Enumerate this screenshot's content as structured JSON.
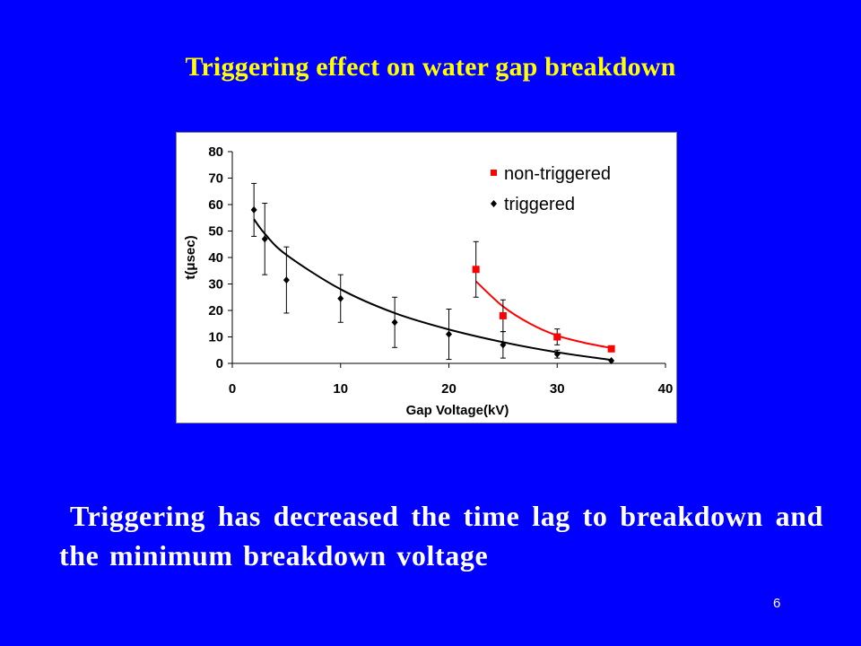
{
  "slide": {
    "title": "Triggering effect on water gap breakdown",
    "body": "Triggering has decreased the time lag to breakdown and the minimum breakdown voltage",
    "page_number": "6",
    "colors": {
      "background": "#0000ff",
      "title": "#ffff00",
      "body_text": "#ffffff"
    }
  },
  "chart_data": {
    "type": "scatter",
    "xlabel": "Gap Voltage(kV)",
    "ylabel": "t(μsec)",
    "xlim": [
      0,
      40
    ],
    "ylim": [
      0,
      80
    ],
    "xticks": [
      0,
      10,
      20,
      30,
      40
    ],
    "yticks": [
      0,
      10,
      20,
      30,
      40,
      50,
      60,
      70,
      80
    ],
    "xtick_labels": [
      "0",
      "10",
      "20",
      "30",
      "40"
    ],
    "ytick_labels": [
      "0",
      "10",
      "20",
      "30",
      "40",
      "50",
      "60",
      "70",
      "80"
    ],
    "grid": false,
    "legend_position": "top-right",
    "series": [
      {
        "name": "non-triggered",
        "marker": "square",
        "color": "#ff0000",
        "points": [
          {
            "x": 22.5,
            "y": 35.5,
            "err": 10.5
          },
          {
            "x": 25,
            "y": 18,
            "err": 6
          },
          {
            "x": 30,
            "y": 10,
            "err": 3
          },
          {
            "x": 35,
            "y": 5.5,
            "err": 0
          }
        ],
        "trend": {
          "x_from": 22.5,
          "x_to": 35,
          "x": [
            22.5,
            25,
            27.5,
            30,
            32.5,
            35
          ],
          "y": [
            31,
            21.5,
            15,
            10.5,
            7.8,
            5.8
          ]
        }
      },
      {
        "name": "triggered",
        "marker": "diamond",
        "color": "#000000",
        "points": [
          {
            "x": 2,
            "y": 58,
            "err": 10
          },
          {
            "x": 3,
            "y": 47,
            "err": 13.5
          },
          {
            "x": 5,
            "y": 31.5,
            "err": 12.5
          },
          {
            "x": 10,
            "y": 24.5,
            "err": 9
          },
          {
            "x": 15,
            "y": 15.5,
            "err": 9.5
          },
          {
            "x": 20,
            "y": 11,
            "err": 9.5
          },
          {
            "x": 25,
            "y": 7,
            "err": 5
          },
          {
            "x": 30,
            "y": 3.5,
            "err": 1.5
          },
          {
            "x": 35,
            "y": 1,
            "err": 0
          }
        ],
        "trend": {
          "x_from": 2,
          "x_to": 35,
          "x": [
            2,
            3,
            5,
            10,
            15,
            20,
            25,
            30,
            35
          ],
          "y": [
            54.5,
            49,
            41,
            28,
            19,
            12.8,
            8,
            4.2,
            1.3
          ]
        }
      }
    ]
  }
}
